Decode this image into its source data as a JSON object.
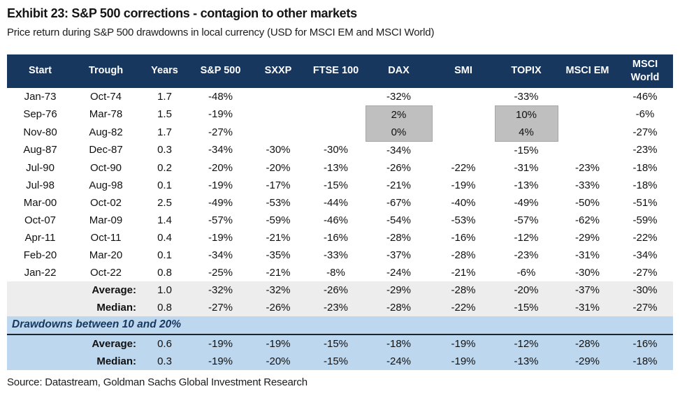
{
  "header": {
    "title": "Exhibit 23: S&P 500 corrections - contagion to other markets",
    "subtitle": "Price return during S&P 500 drawdowns in local currency (USD for MSCI EM and MSCI World)"
  },
  "footer": {
    "source": "Source: Datastream, Goldman Sachs Global Investment Research"
  },
  "colors": {
    "header_bg": "#17375E",
    "header_text": "#FFFFFF",
    "summary_row_bg": "#EEEDED",
    "section_bg": "#BDD7EE",
    "section_text": "#17375E",
    "highlight_cell_bg": "#BFBFBF",
    "highlight_cell_border": "#A6A6A6"
  },
  "chart_data": {
    "type": "table",
    "title": "Exhibit 23: S&P 500 corrections - contagion to other markets",
    "columns": [
      "Start",
      "Trough",
      "Years",
      "S&P 500",
      "SXXP",
      "FTSE 100",
      "DAX",
      "SMI",
      "TOPIX",
      "MSCI EM",
      "MSCI World"
    ],
    "rows": [
      {
        "style": "data",
        "cells": [
          "Jan-73",
          "Oct-74",
          "1.7",
          "-48%",
          "",
          "",
          "-32%",
          "",
          "-33%",
          "",
          "-46%"
        ]
      },
      {
        "style": "data",
        "cells": [
          "Sep-76",
          "Mar-78",
          "1.5",
          "-19%",
          "",
          "",
          "2%",
          "",
          "10%",
          "",
          "-6%"
        ]
      },
      {
        "style": "data",
        "cells": [
          "Nov-80",
          "Aug-82",
          "1.7",
          "-27%",
          "",
          "",
          "0%",
          "",
          "4%",
          "",
          "-27%"
        ]
      },
      {
        "style": "data",
        "cells": [
          "Aug-87",
          "Dec-87",
          "0.3",
          "-34%",
          "-30%",
          "-30%",
          "-34%",
          "",
          "-15%",
          "",
          "-23%"
        ]
      },
      {
        "style": "data",
        "cells": [
          "Jul-90",
          "Oct-90",
          "0.2",
          "-20%",
          "-20%",
          "-13%",
          "-26%",
          "-22%",
          "-31%",
          "-23%",
          "-18%"
        ]
      },
      {
        "style": "data",
        "cells": [
          "Jul-98",
          "Aug-98",
          "0.1",
          "-19%",
          "-17%",
          "-15%",
          "-21%",
          "-19%",
          "-13%",
          "-33%",
          "-18%"
        ]
      },
      {
        "style": "data",
        "cells": [
          "Mar-00",
          "Oct-02",
          "2.5",
          "-49%",
          "-53%",
          "-44%",
          "-67%",
          "-40%",
          "-49%",
          "-50%",
          "-51%"
        ]
      },
      {
        "style": "data",
        "cells": [
          "Oct-07",
          "Mar-09",
          "1.4",
          "-57%",
          "-59%",
          "-46%",
          "-54%",
          "-53%",
          "-57%",
          "-62%",
          "-59%"
        ]
      },
      {
        "style": "data",
        "cells": [
          "Apr-11",
          "Oct-11",
          "0.4",
          "-19%",
          "-21%",
          "-16%",
          "-28%",
          "-16%",
          "-12%",
          "-29%",
          "-22%"
        ]
      },
      {
        "style": "data",
        "cells": [
          "Feb-20",
          "Mar-20",
          "0.1",
          "-34%",
          "-35%",
          "-33%",
          "-37%",
          "-28%",
          "-23%",
          "-31%",
          "-34%"
        ]
      },
      {
        "style": "data",
        "cells": [
          "Jan-22",
          "Oct-22",
          "0.8",
          "-25%",
          "-21%",
          "-8%",
          "-24%",
          "-21%",
          "-6%",
          "-30%",
          "-27%"
        ]
      },
      {
        "style": "summary",
        "cells": [
          "",
          "Average:",
          "1.0",
          "-32%",
          "-32%",
          "-26%",
          "-29%",
          "-28%",
          "-20%",
          "-37%",
          "-30%"
        ]
      },
      {
        "style": "summary",
        "cells": [
          "",
          "Median:",
          "0.8",
          "-27%",
          "-26%",
          "-23%",
          "-28%",
          "-22%",
          "-15%",
          "-31%",
          "-27%"
        ]
      },
      {
        "style": "section",
        "label": "Drawdowns between 10 and 20%"
      },
      {
        "style": "bsummary",
        "cells": [
          "",
          "Average:",
          "0.6",
          "-19%",
          "-19%",
          "-15%",
          "-18%",
          "-19%",
          "-12%",
          "-28%",
          "-16%"
        ]
      },
      {
        "style": "bsummary",
        "cells": [
          "",
          "Median:",
          "0.3",
          "-19%",
          "-20%",
          "-15%",
          "-24%",
          "-19%",
          "-13%",
          "-29%",
          "-18%"
        ]
      }
    ],
    "highlighted_cells": [
      [
        1,
        6
      ],
      [
        1,
        8
      ],
      [
        2,
        6
      ],
      [
        2,
        8
      ]
    ]
  }
}
